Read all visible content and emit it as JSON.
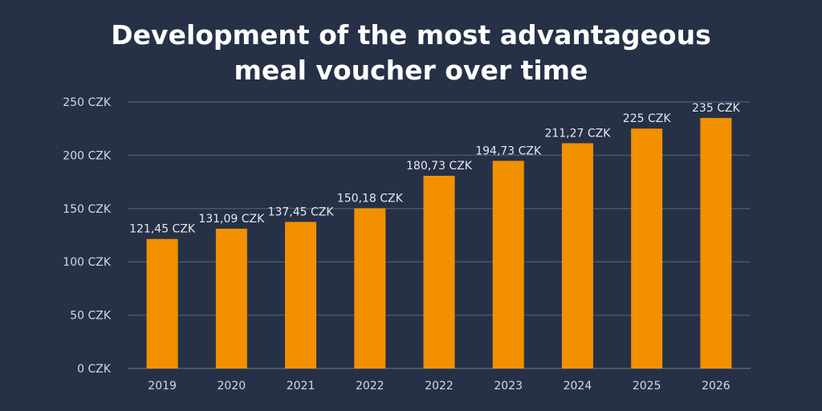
{
  "chart_data": {
    "type": "bar",
    "title_lines": [
      "Development of the most advantageous",
      "meal voucher over time"
    ],
    "categories": [
      "2019",
      "2020",
      "2021",
      "2022",
      "2022",
      "2023",
      "2024",
      "2025",
      "2026"
    ],
    "values": [
      121.45,
      131.09,
      137.45,
      150.18,
      180.73,
      194.73,
      211.27,
      225,
      235
    ],
    "data_labels": [
      "121,45 CZK",
      "131,09 CZK",
      "137,45 CZK",
      "150,18 CZK",
      "180,73 CZK",
      "194,73 CZK",
      "211,27 CZK",
      "225 CZK",
      "235 CZK"
    ],
    "yticks": [
      0,
      50,
      100,
      150,
      200,
      250
    ],
    "ytick_labels": [
      "0 CZK",
      "50 CZK",
      "100 CZK",
      "150 CZK",
      "200 CZK",
      "250 CZK"
    ],
    "ylim": [
      0,
      250
    ],
    "xlabel": "",
    "ylabel": "",
    "grid": true,
    "colors": {
      "bar": "#F39000",
      "background": "#263147",
      "grid": "#4a5568"
    }
  }
}
